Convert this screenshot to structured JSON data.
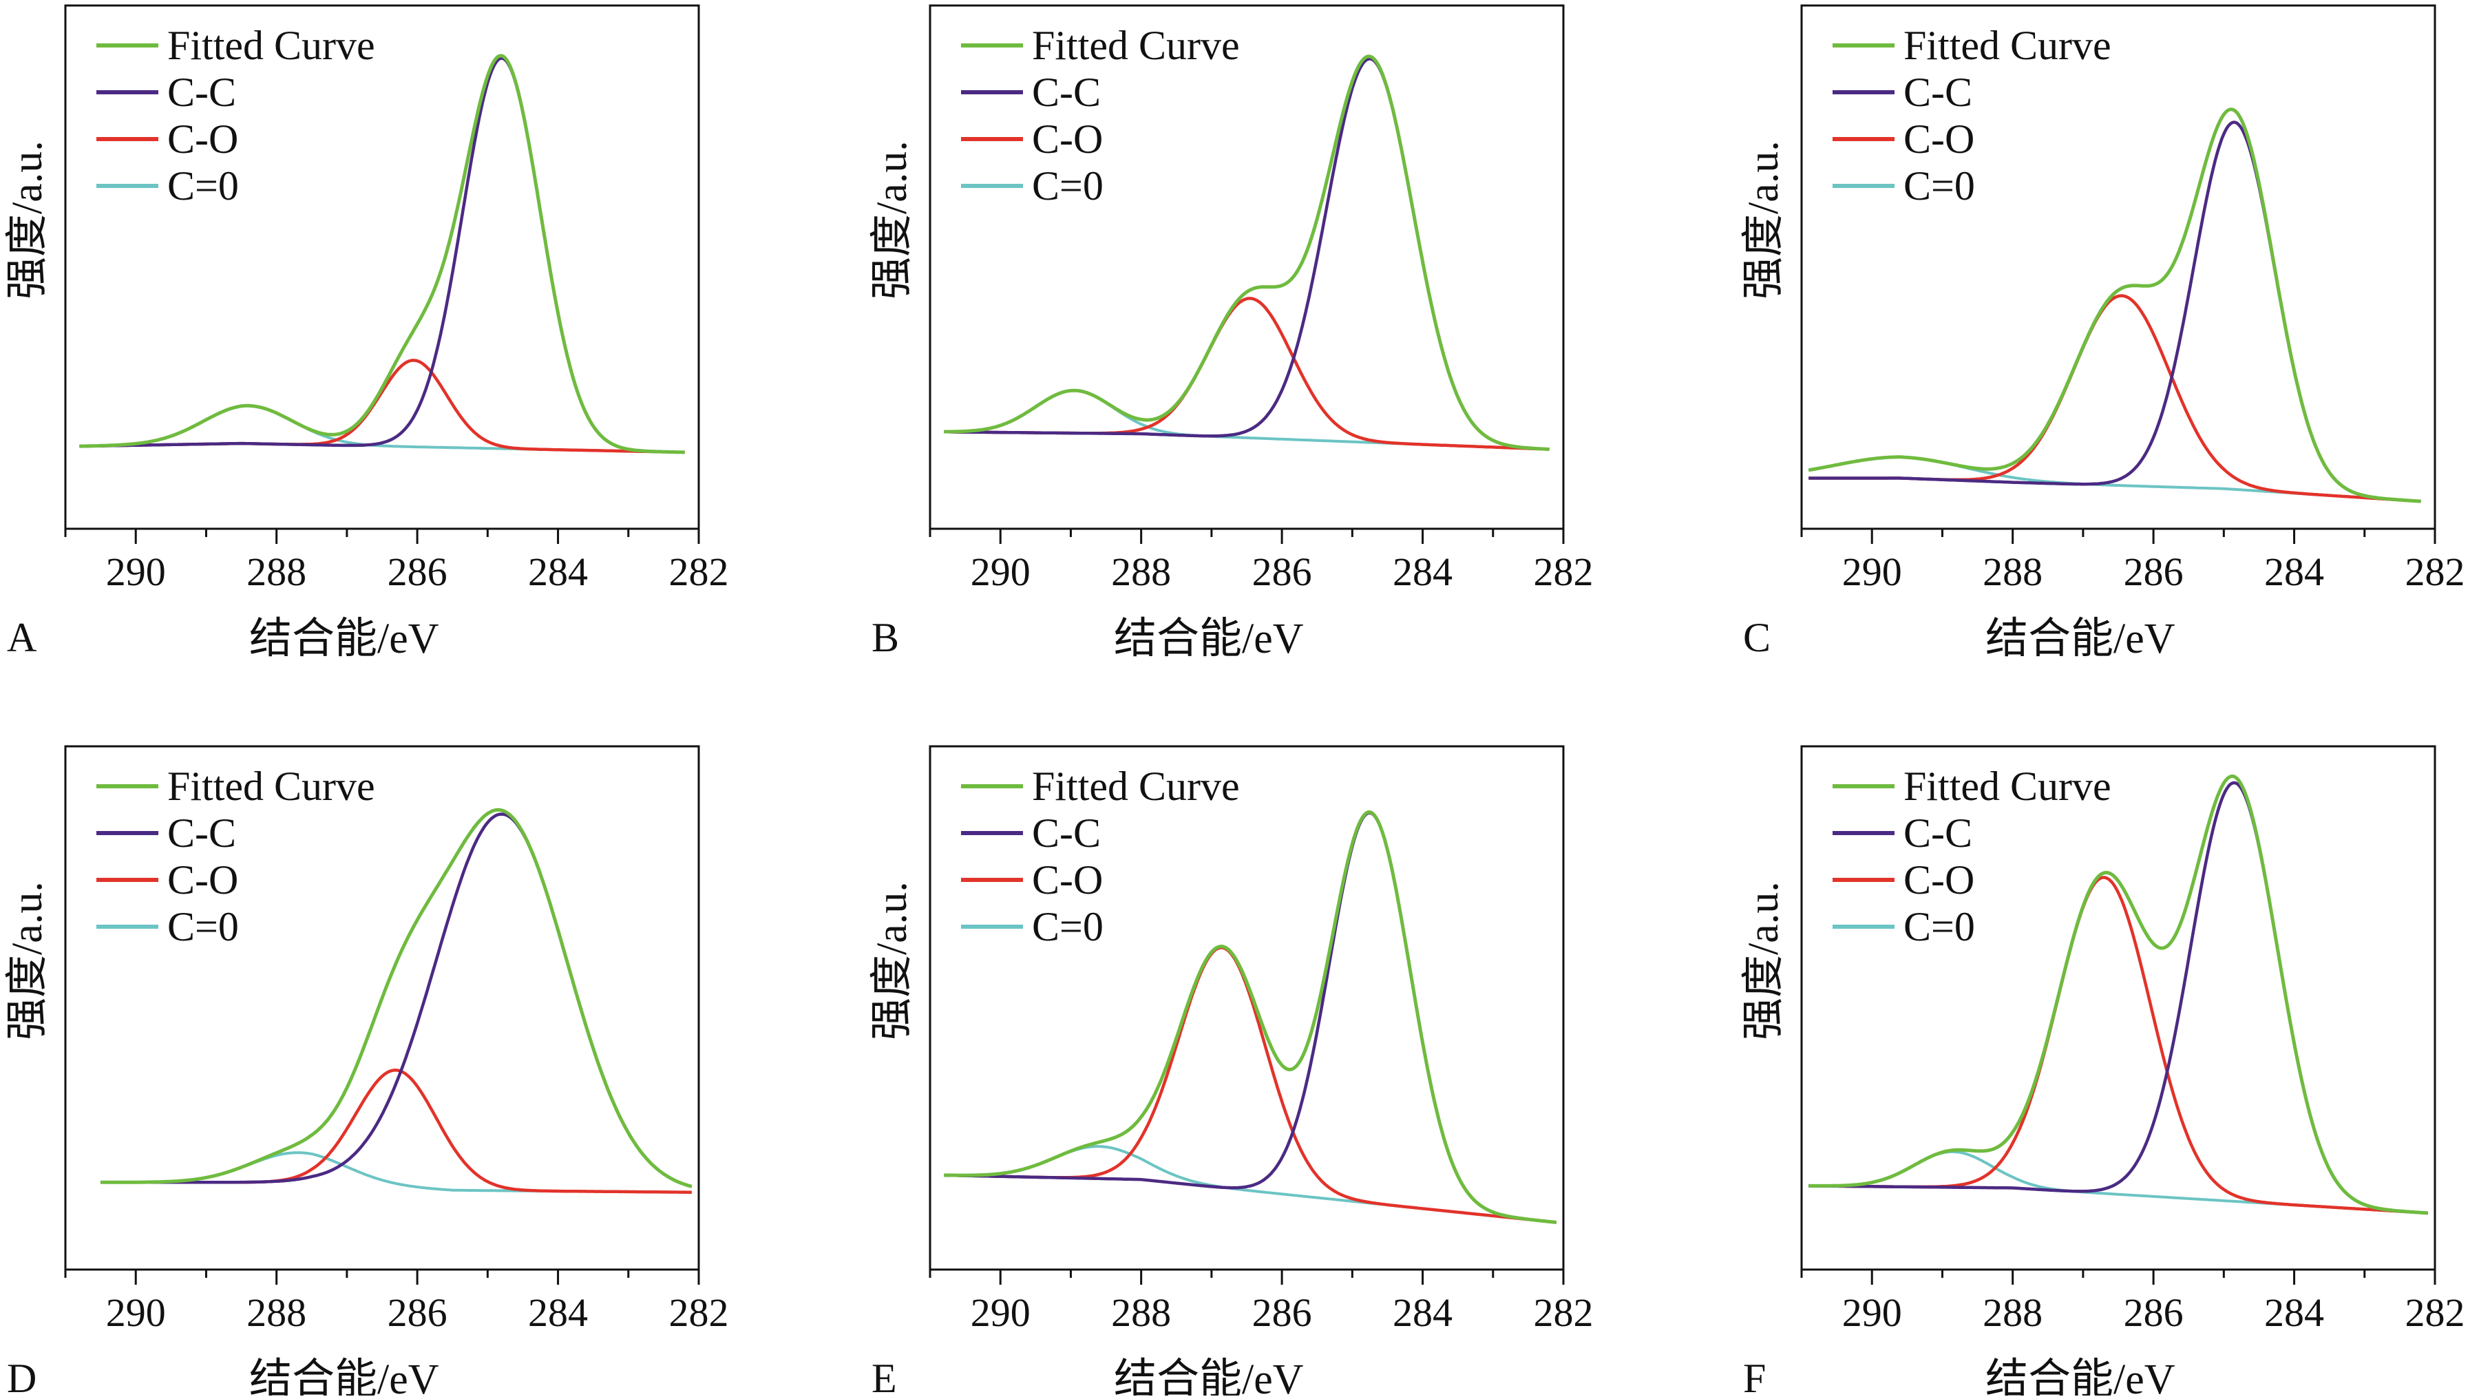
{
  "colors": {
    "fitted": "#6fbb3f",
    "cc": "#4b2a83",
    "co": "#e2332a",
    "c0": "#6cc4c4"
  },
  "legend": [
    "Fitted Curve",
    "C-C",
    "C-O",
    "C=0"
  ],
  "xlabel": "结合能/eV",
  "ylabel": "强度/a.u.",
  "chart_data": [
    {
      "type": "line",
      "panel": "A",
      "xlabel": "结合能/eV",
      "ylabel": "强度/a.u.",
      "xlim": [
        291,
        282
      ],
      "ylim": [
        -0.2,
        1.1
      ],
      "x_ticks": [
        "290",
        "288",
        "286",
        "284",
        "282"
      ],
      "legend": "top-left",
      "range": [
        290.8,
        282.2
      ],
      "baseline": [
        [
          290.8,
          0.005
        ],
        [
          288.5,
          0.012
        ],
        [
          282.2,
          -0.01
        ]
      ],
      "peaks": [
        {
          "name": "C-C",
          "center": 284.8,
          "height": 0.97,
          "fwhm": 1.3
        },
        {
          "name": "C-O",
          "center": 286.05,
          "height": 0.215,
          "fwhm": 1.1
        },
        {
          "name": "C=0",
          "center": 288.4,
          "height": 0.094,
          "fwhm": 1.5
        }
      ]
    },
    {
      "type": "line",
      "panel": "B",
      "xlabel": "结合能/eV",
      "ylabel": "强度/a.u.",
      "xlim": [
        291,
        282
      ],
      "ylim": [
        -0.25,
        1.1
      ],
      "x_ticks": [
        "290",
        "288",
        "286",
        "284",
        "282"
      ],
      "legend": "top-left",
      "range": [
        290.8,
        282.2
      ],
      "baseline": [
        [
          290.8,
          0.0
        ],
        [
          288.0,
          -0.005
        ],
        [
          282.2,
          -0.045
        ]
      ],
      "peaks": [
        {
          "name": "C-C",
          "center": 284.75,
          "height": 0.99,
          "fwhm": 1.45
        },
        {
          "name": "C-O",
          "center": 286.45,
          "height": 0.36,
          "fwhm": 1.4
        },
        {
          "name": "C=0",
          "center": 288.95,
          "height": 0.11,
          "fwhm": 1.3
        }
      ]
    },
    {
      "type": "line",
      "panel": "C",
      "xlabel": "结合能/eV",
      "ylabel": "强度/a.u.",
      "xlim": [
        291,
        282
      ],
      "ylim": [
        -0.12,
        1.12
      ],
      "x_ticks": [
        "290",
        "288",
        "286",
        "284",
        "282"
      ],
      "legend": "top-left",
      "range": [
        290.9,
        282.2
      ],
      "baseline": [
        [
          290.9,
          0.0
        ],
        [
          289.6,
          0.0
        ],
        [
          288.0,
          -0.01
        ],
        [
          285.0,
          -0.025
        ],
        [
          282.2,
          -0.055
        ]
      ],
      "peaks": [
        {
          "name": "C-C",
          "center": 284.85,
          "height": 0.87,
          "fwhm": 1.35
        },
        {
          "name": "C-O",
          "center": 286.45,
          "height": 0.45,
          "fwhm": 1.6
        },
        {
          "name": "C=0",
          "center": 289.6,
          "height": 0.05,
          "fwhm": 2.2
        }
      ]
    },
    {
      "type": "line",
      "panel": "D",
      "xlabel": "结合能/eV",
      "ylabel": "强度/a.u.",
      "xlim": [
        291,
        282
      ],
      "ylim": [
        -0.22,
        1.1
      ],
      "x_ticks": [
        "290",
        "288",
        "286",
        "284",
        "282"
      ],
      "legend": "top-left",
      "range": [
        290.5,
        282.1
      ],
      "baseline": [
        [
          290.5,
          0.0
        ],
        [
          287.5,
          0.0
        ],
        [
          285.5,
          -0.02
        ],
        [
          282.1,
          -0.025
        ]
      ],
      "peaks": [
        {
          "name": "C-C",
          "center": 284.8,
          "height": 0.95,
          "fwhm": 2.2
        },
        {
          "name": "C-O",
          "center": 286.3,
          "height": 0.295,
          "fwhm": 1.35
        },
        {
          "name": "C=0",
          "center": 287.7,
          "height": 0.075,
          "fwhm": 1.6
        }
      ]
    },
    {
      "type": "line",
      "panel": "E",
      "xlabel": "结合能/eV",
      "ylabel": "强度/a.u.",
      "xlim": [
        291,
        282
      ],
      "ylim": [
        -0.22,
        1.0
      ],
      "x_ticks": [
        "290",
        "288",
        "286",
        "284",
        "282"
      ],
      "legend": "top-left",
      "range": [
        290.8,
        282.1
      ],
      "baseline": [
        [
          290.8,
          0.0
        ],
        [
          288.0,
          -0.01
        ],
        [
          282.1,
          -0.11
        ]
      ],
      "peaks": [
        {
          "name": "C-C",
          "center": 284.75,
          "height": 0.91,
          "fwhm": 1.35
        },
        {
          "name": "C-O",
          "center": 286.85,
          "height": 0.56,
          "fwhm": 1.45
        },
        {
          "name": "C=0",
          "center": 288.6,
          "height": 0.075,
          "fwhm": 1.5
        }
      ]
    },
    {
      "type": "line",
      "panel": "F",
      "xlabel": "结合能/eV",
      "ylabel": "强度/a.u.",
      "xlim": [
        291,
        282
      ],
      "ylim": [
        -0.2,
        1.05
      ],
      "x_ticks": [
        "290",
        "288",
        "286",
        "284",
        "282"
      ],
      "legend": "top-left",
      "range": [
        290.9,
        282.1
      ],
      "baseline": [
        [
          290.9,
          0.0
        ],
        [
          288.0,
          -0.005
        ],
        [
          282.1,
          -0.065
        ]
      ],
      "peaks": [
        {
          "name": "C-C",
          "center": 284.85,
          "height": 1.0,
          "fwhm": 1.45
        },
        {
          "name": "C-O",
          "center": 286.7,
          "height": 0.755,
          "fwhm": 1.55
        },
        {
          "name": "C=0",
          "center": 288.85,
          "height": 0.085,
          "fwhm": 1.3
        }
      ]
    }
  ]
}
